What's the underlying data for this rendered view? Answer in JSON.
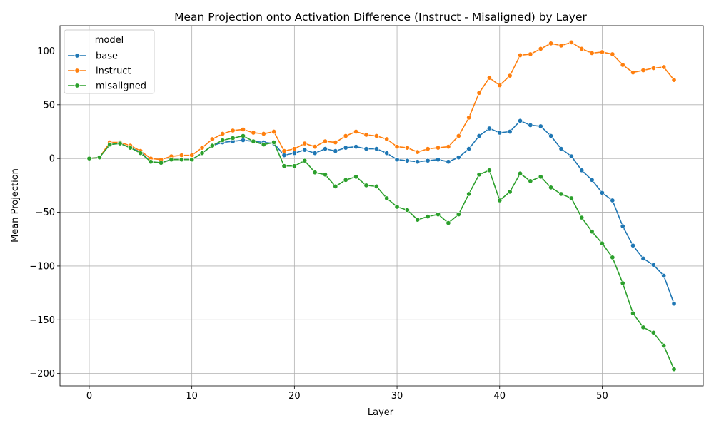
{
  "chart_data": {
    "type": "line",
    "title": "Mean Projection onto Activation Difference (Instruct - Misaligned) by Layer",
    "xlabel": "Layer",
    "ylabel": "Mean Projection",
    "xlim": [
      -2.85,
      59.85
    ],
    "ylim": [
      -211.5,
      123.5
    ],
    "xticks": [
      0,
      10,
      20,
      30,
      40,
      50
    ],
    "yticks": [
      100,
      50,
      0,
      -50,
      -100,
      -150,
      -200
    ],
    "xtick_labels": [
      "0",
      "10",
      "20",
      "30",
      "40",
      "50"
    ],
    "ytick_labels": [
      "100",
      "50",
      "0",
      "−50",
      "−100",
      "−150",
      "−200"
    ],
    "grid": true,
    "legend": {
      "title": "model",
      "position": "top-left"
    },
    "x": [
      0,
      1,
      2,
      3,
      4,
      5,
      6,
      7,
      8,
      9,
      10,
      11,
      12,
      13,
      14,
      15,
      16,
      17,
      18,
      19,
      20,
      21,
      22,
      23,
      24,
      25,
      26,
      27,
      28,
      29,
      30,
      31,
      32,
      33,
      34,
      35,
      36,
      37,
      38,
      39,
      40,
      41,
      42,
      43,
      44,
      45,
      46,
      47,
      48,
      49,
      50,
      51,
      52,
      53,
      54,
      55,
      56,
      57
    ],
    "series": [
      {
        "name": "base",
        "color": "#1f77b4",
        "values": [
          0,
          1,
          13,
          14,
          10,
          6,
          -3,
          -4,
          -1,
          -1,
          -1,
          5,
          12,
          15,
          16,
          17,
          16,
          15,
          14,
          3,
          5,
          8,
          5,
          9,
          7,
          10,
          11,
          9,
          9,
          5,
          -1,
          -2,
          -3,
          -2,
          -1,
          -3,
          1,
          9,
          21,
          28,
          24,
          25,
          35,
          31,
          30,
          21,
          9,
          2,
          -11,
          -20,
          -32,
          -39,
          -63,
          -81,
          -93,
          -99,
          -109,
          -135
        ]
      },
      {
        "name": "instruct",
        "color": "#ff7f0e",
        "values": [
          0,
          1,
          15,
          15,
          12,
          7,
          0,
          -1,
          2,
          3,
          3,
          10,
          18,
          23,
          26,
          27,
          24,
          23,
          25,
          7,
          9,
          14,
          11,
          16,
          15,
          21,
          25,
          22,
          21,
          18,
          11,
          10,
          6,
          9,
          10,
          11,
          21,
          38,
          61,
          75,
          68,
          77,
          96,
          97,
          102,
          107,
          105,
          108,
          102,
          98,
          99,
          97,
          87,
          80,
          82,
          84,
          85,
          73
        ]
      },
      {
        "name": "misaligned",
        "color": "#2ca02c",
        "values": [
          0,
          1,
          13,
          14,
          10,
          5,
          -3,
          -4,
          -1,
          -1,
          -1,
          5,
          12,
          17,
          19,
          21,
          16,
          13,
          15,
          -7,
          -7,
          -2,
          -13,
          -15,
          -26,
          -20,
          -17,
          -25,
          -26,
          -37,
          -45,
          -48,
          -57,
          -54,
          -52,
          -60,
          -52,
          -33,
          -15,
          -11,
          -39,
          -31,
          -14,
          -21,
          -17,
          -27,
          -33,
          -37,
          -55,
          -68,
          -79,
          -92,
          -116,
          -144,
          -157,
          -162,
          -174,
          -196
        ]
      }
    ]
  }
}
